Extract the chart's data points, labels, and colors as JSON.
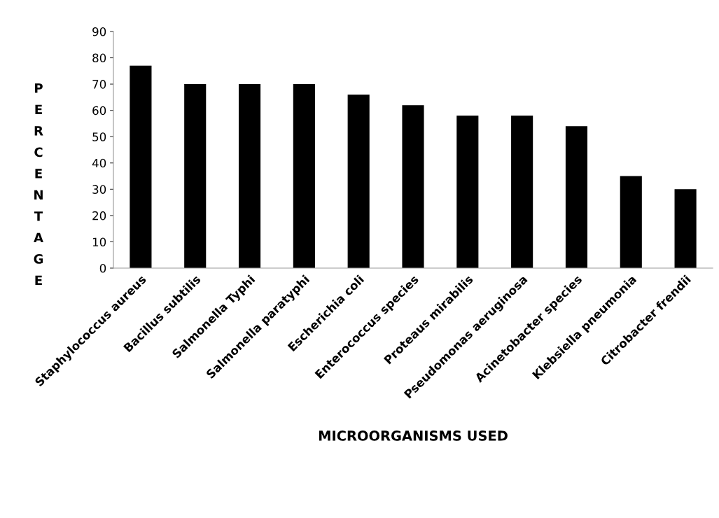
{
  "chart_data": {
    "type": "bar",
    "xlabel": "MICROORGANISMS USED",
    "ylabel": "PERCENTAGE",
    "categories": [
      "Staphylococcus aureus",
      "Bacillus subtilis",
      "Salmonella Typhi",
      "Salmonella paratyphi",
      "Escherichia coli",
      "Enterococcus species",
      "Proteaus mirabilis",
      "Pseudomonas aeruginosa",
      "Acinetobacter species",
      "Klebsiella pneumonia",
      "Citrobacter frendii"
    ],
    "values": [
      77,
      70,
      70,
      70,
      66,
      62,
      58,
      58,
      54,
      35,
      30
    ],
    "color": "#000000",
    "ylim": [
      0,
      90
    ],
    "yticks": [
      0,
      10,
      20,
      30,
      40,
      50,
      60,
      70,
      80,
      90
    ],
    "grid": false,
    "legend": false
  }
}
